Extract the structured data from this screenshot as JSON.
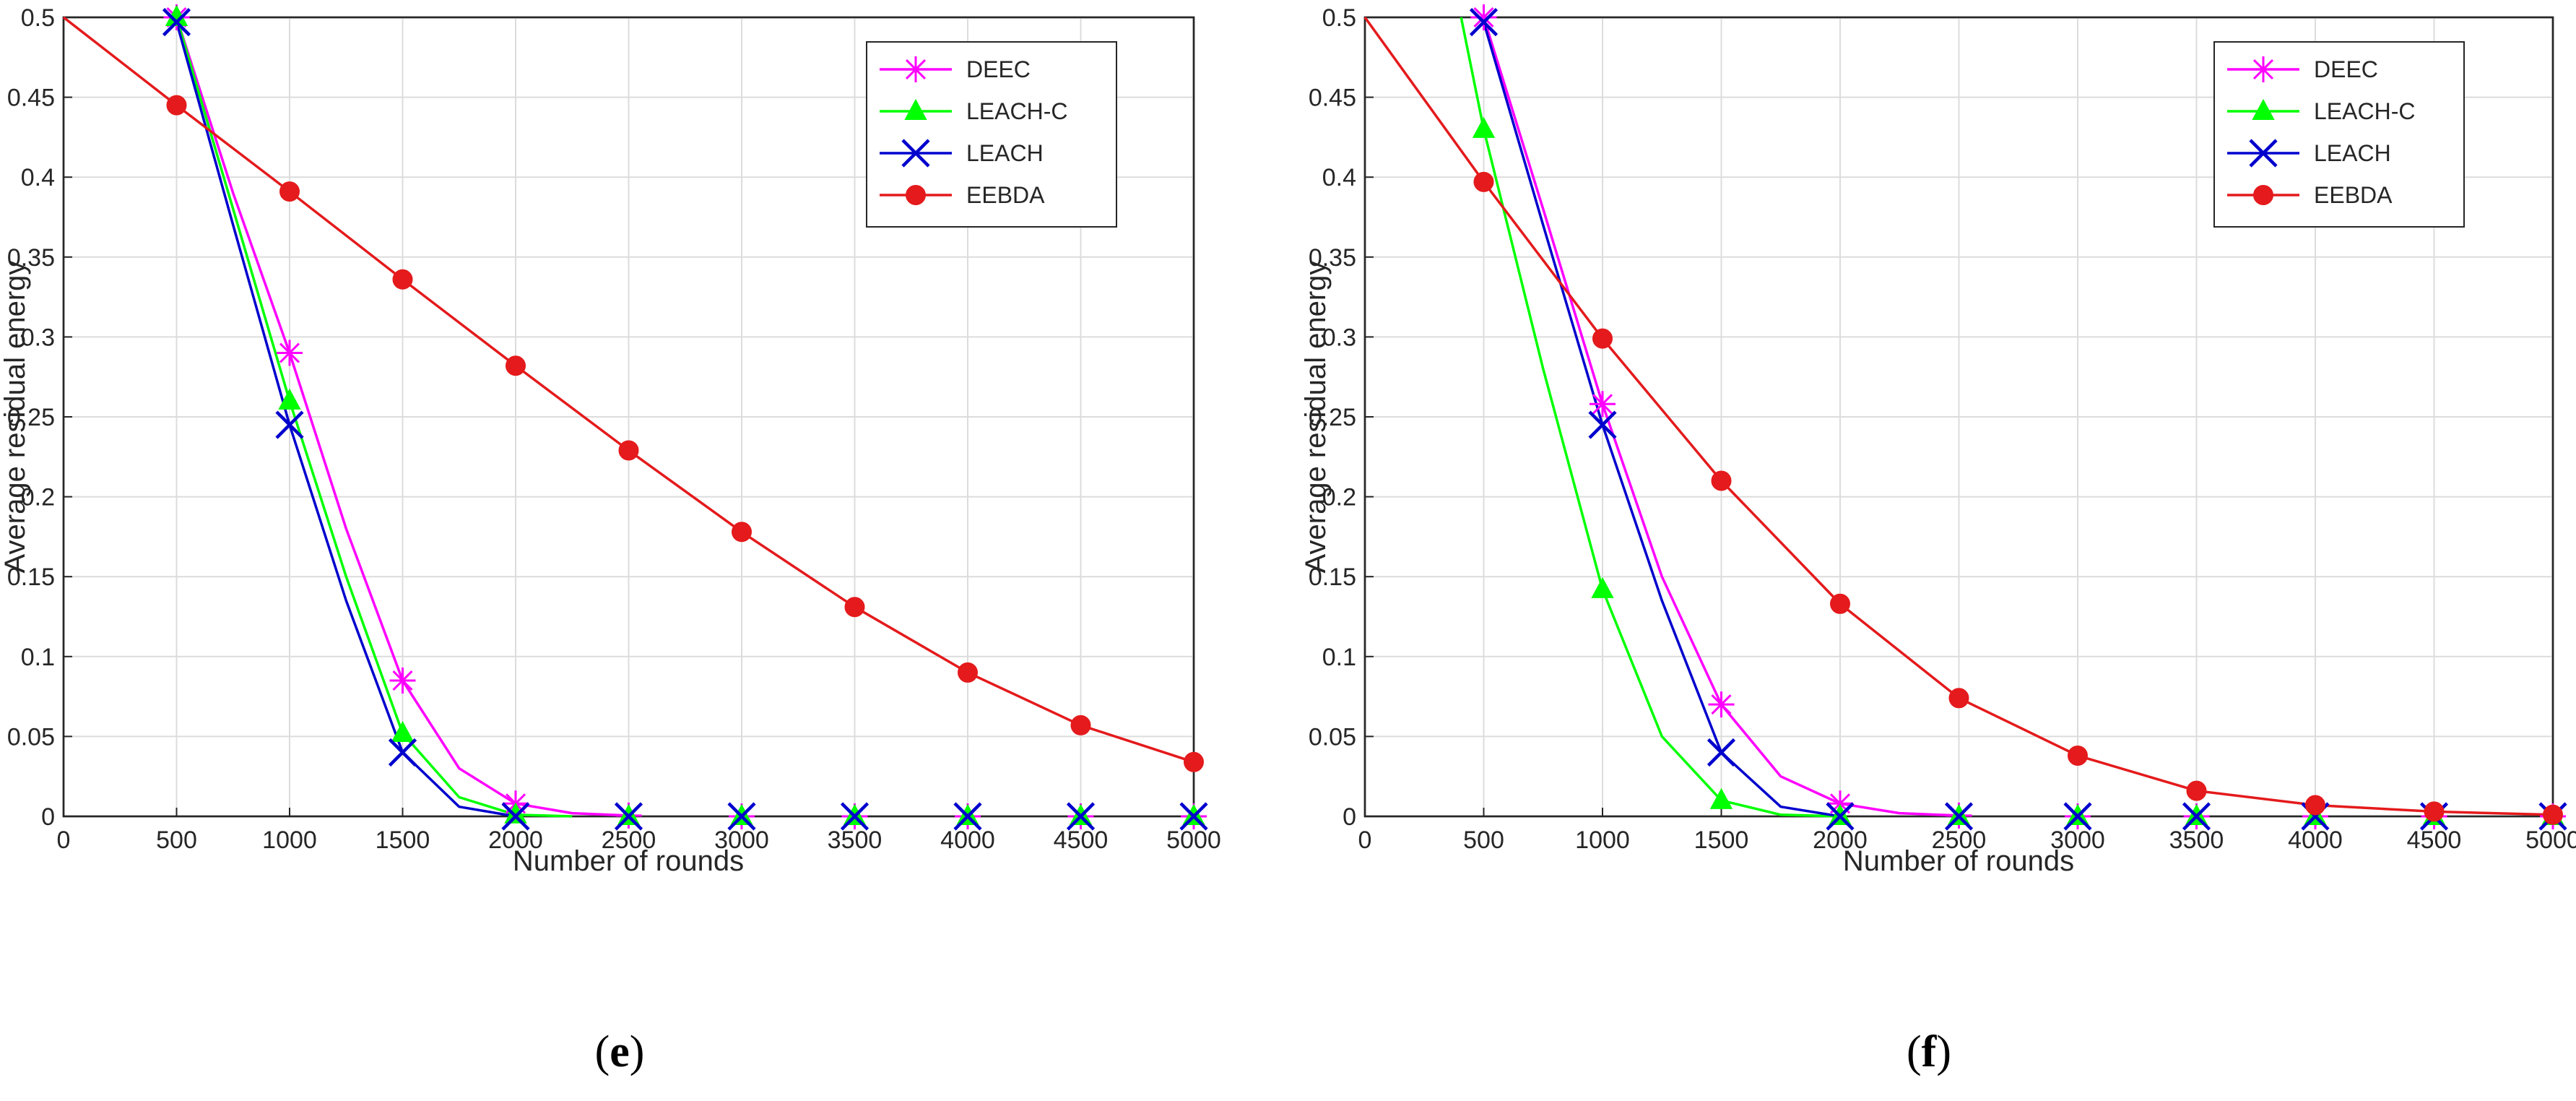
{
  "chart_data": [
    {
      "id": "e",
      "type": "line",
      "panel_label": "(e)",
      "panel_letter": "e",
      "xlabel": "Number of rounds",
      "ylabel": "Average residual energy",
      "xlim": [
        0,
        5000
      ],
      "ylim": [
        0,
        0.5
      ],
      "x_ticks": [
        "0",
        "500",
        "1000",
        "1500",
        "2000",
        "2500",
        "3000",
        "3500",
        "4000",
        "4500",
        "5000"
      ],
      "y_ticks": [
        "0",
        "0.05",
        "0.1",
        "0.15",
        "0.2",
        "0.25",
        "0.3",
        "0.35",
        "0.4",
        "0.45",
        "0.5"
      ],
      "grid": true,
      "legend_position": "top-right",
      "series": [
        {
          "name": "DEEC",
          "color": "#ff00ff",
          "marker": "asterisk",
          "x": [
            500,
            1000,
            1500,
            2000,
            2500,
            3000,
            3500,
            4000,
            4500,
            5000
          ],
          "y": [
            0.5,
            0.29,
            0.085,
            0.008,
            0.0005,
            0,
            0,
            0,
            0,
            0
          ],
          "curve_x": [
            500,
            750,
            1000,
            1250,
            1500,
            1750,
            2000,
            2250,
            2500
          ],
          "curve_y": [
            0.5,
            0.39,
            0.29,
            0.18,
            0.085,
            0.03,
            0.008,
            0.002,
            0.0005
          ]
        },
        {
          "name": "LEACH-C",
          "color": "#00ff00",
          "marker": "triangle",
          "x": [
            500,
            1000,
            1500,
            2000,
            2500,
            3000,
            3500,
            4000,
            4500,
            5000
          ],
          "y": [
            0.5,
            0.26,
            0.052,
            0.001,
            0,
            0,
            0,
            0,
            0,
            0
          ],
          "curve_x": [
            500,
            750,
            1000,
            1250,
            1500,
            1750,
            2000,
            2250
          ],
          "curve_y": [
            0.5,
            0.38,
            0.26,
            0.15,
            0.052,
            0.012,
            0.001,
            0
          ]
        },
        {
          "name": "LEACH",
          "color": "#0000cd",
          "marker": "x",
          "x": [
            500,
            1000,
            1500,
            2000,
            2500,
            3000,
            3500,
            4000,
            4500,
            5000
          ],
          "y": [
            0.497,
            0.245,
            0.04,
            0.0,
            0,
            0,
            0,
            0,
            0,
            0
          ],
          "curve_x": [
            500,
            750,
            1000,
            1250,
            1500,
            1750,
            2000
          ],
          "curve_y": [
            0.497,
            0.37,
            0.245,
            0.135,
            0.04,
            0.006,
            0
          ]
        },
        {
          "name": "EEBDA",
          "color": "#e41a1c",
          "marker": "circle",
          "x": [
            500,
            1000,
            1500,
            2000,
            2500,
            3000,
            3500,
            4000,
            4500,
            5000
          ],
          "y": [
            0.445,
            0.391,
            0.336,
            0.282,
            0.229,
            0.178,
            0.131,
            0.09,
            0.057,
            0.034
          ],
          "curve_x": [
            0,
            500,
            1000,
            1500,
            2000,
            2500,
            3000,
            3500,
            4000,
            4500,
            5000
          ],
          "curve_y": [
            0.5,
            0.445,
            0.391,
            0.336,
            0.282,
            0.229,
            0.178,
            0.131,
            0.09,
            0.057,
            0.034
          ]
        }
      ]
    },
    {
      "id": "f",
      "type": "line",
      "panel_label": "(f)",
      "panel_letter": "f",
      "xlabel": "Number of rounds",
      "ylabel": "Average residual energy",
      "xlim": [
        0,
        5000
      ],
      "ylim": [
        0,
        0.5
      ],
      "x_ticks": [
        "0",
        "500",
        "1000",
        "1500",
        "2000",
        "2500",
        "3000",
        "3500",
        "4000",
        "4500",
        "5000"
      ],
      "y_ticks": [
        "0",
        "0.05",
        "0.1",
        "0.15",
        "0.2",
        "0.25",
        "0.3",
        "0.35",
        "0.4",
        "0.45",
        "0.5"
      ],
      "grid": true,
      "legend_position": "top-right",
      "series": [
        {
          "name": "DEEC",
          "color": "#ff00ff",
          "marker": "asterisk",
          "x": [
            500,
            1000,
            1500,
            2000,
            2500,
            3000,
            3500,
            4000,
            4500,
            5000
          ],
          "y": [
            0.5,
            0.258,
            0.07,
            0.008,
            0.0005,
            0,
            0,
            0,
            0,
            0
          ],
          "curve_x": [
            500,
            750,
            1000,
            1250,
            1500,
            1750,
            2000,
            2250,
            2500
          ],
          "curve_y": [
            0.5,
            0.38,
            0.258,
            0.15,
            0.07,
            0.025,
            0.008,
            0.002,
            0.0005
          ]
        },
        {
          "name": "LEACH-C",
          "color": "#00ff00",
          "marker": "triangle",
          "x": [
            500,
            1000,
            1500,
            2000,
            2500,
            3000,
            3500,
            4000,
            4500,
            5000
          ],
          "y": [
            0.43,
            0.142,
            0.01,
            0,
            0,
            0,
            0,
            0,
            0,
            0
          ],
          "curve_x": [
            405,
            500,
            750,
            1000,
            1250,
            1500,
            1750,
            2000
          ],
          "curve_y": [
            0.5,
            0.43,
            0.28,
            0.142,
            0.05,
            0.01,
            0.001,
            0
          ]
        },
        {
          "name": "LEACH",
          "color": "#0000cd",
          "marker": "x",
          "x": [
            500,
            1000,
            1500,
            2000,
            2500,
            3000,
            3500,
            4000,
            4500,
            5000
          ],
          "y": [
            0.497,
            0.245,
            0.04,
            0.0,
            0,
            0,
            0,
            0,
            0,
            0
          ],
          "curve_x": [
            500,
            750,
            1000,
            1250,
            1500,
            1750,
            2000
          ],
          "curve_y": [
            0.497,
            0.37,
            0.245,
            0.135,
            0.04,
            0.006,
            0
          ]
        },
        {
          "name": "EEBDA",
          "color": "#e41a1c",
          "marker": "circle",
          "x": [
            500,
            1000,
            1500,
            2000,
            2500,
            3000,
            3500,
            4000,
            4500,
            5000
          ],
          "y": [
            0.397,
            0.299,
            0.21,
            0.133,
            0.074,
            0.038,
            0.016,
            0.007,
            0.003,
            0.001
          ],
          "curve_x": [
            0,
            500,
            1000,
            1500,
            2000,
            2500,
            3000,
            3500,
            4000,
            4500,
            5000
          ],
          "curve_y": [
            0.5,
            0.397,
            0.299,
            0.21,
            0.133,
            0.074,
            0.038,
            0.016,
            0.007,
            0.003,
            0.001
          ]
        }
      ]
    }
  ]
}
